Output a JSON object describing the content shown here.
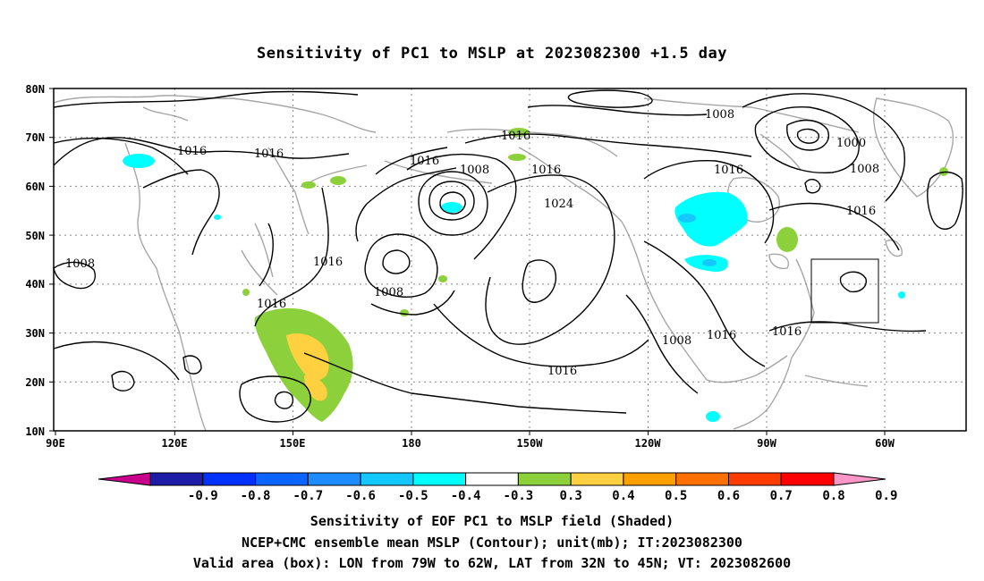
{
  "title": "Sensitivity of PC1 to MSLP at 2023082300 +1.5 day",
  "lat_ticks": [
    "80N",
    "70N",
    "60N",
    "50N",
    "40N",
    "30N",
    "20N",
    "10N"
  ],
  "lon_ticks": [
    "90E",
    "120E",
    "150E",
    "180",
    "150W",
    "120W",
    "90W",
    "60W"
  ],
  "contour_labels": [
    "1016",
    "1016",
    "1016",
    "1008",
    "1016",
    "1024",
    "1008",
    "1000",
    "1008",
    "1016",
    "1016",
    "1008",
    "1008",
    "1016",
    "1016",
    "1008",
    "1016",
    "1016",
    "1016"
  ],
  "colorbar": {
    "labels": [
      "-0.9",
      "-0.8",
      "-0.7",
      "-0.6",
      "-0.5",
      "-0.4",
      "-0.3",
      "0.3",
      "0.4",
      "0.5",
      "0.6",
      "0.7",
      "0.8",
      "0.9"
    ],
    "colors": [
      "#c8008c",
      "#1c1ca6",
      "#0032ff",
      "#0a64ff",
      "#1e8cff",
      "#14c8ff",
      "#00ffff",
      "#ffffff",
      "#8cd13c",
      "#ffd040",
      "#ffa000",
      "#ff7000",
      "#ff3c00",
      "#ff0000",
      "#ff96c8"
    ]
  },
  "colors": {
    "land": "#a6a6a6",
    "contour": "#000000",
    "grid": "#888888"
  },
  "footer": {
    "line1": "Sensitivity of EOF PC1 to MSLP field (Shaded)",
    "line2": "NCEP+CMC ensemble mean MSLP (Contour); unit(mb); IT:2023082300",
    "line3": "Valid area (box): LON from 79W to 62W, LAT from 32N to 45N; VT: 2023082600"
  }
}
